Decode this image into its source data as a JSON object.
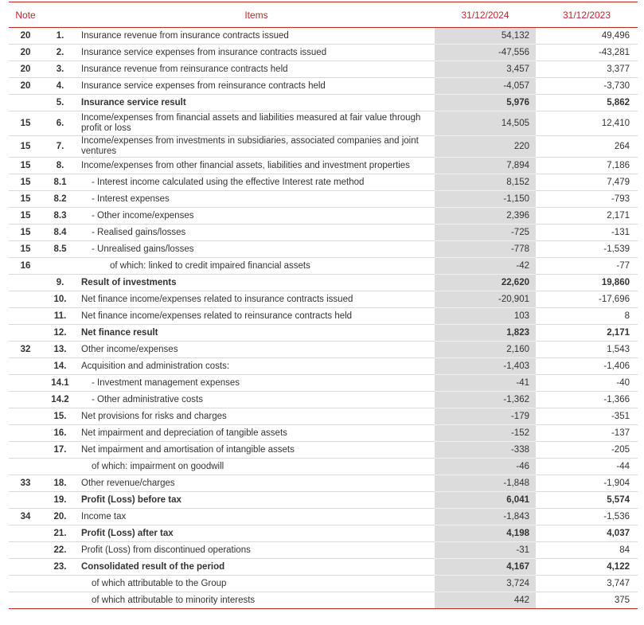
{
  "header": {
    "note": "Note",
    "items": "Items",
    "col1": "31/12/2024",
    "col2": "31/12/2023"
  },
  "rows": [
    {
      "note": "20",
      "num": "1.",
      "item": "Insurance revenue from insurance contracts issued",
      "v24": "54,132",
      "v23": "49,496",
      "bold": false,
      "indent": 0
    },
    {
      "note": "20",
      "num": "2.",
      "item": "Insurance service expenses from insurance contracts issued",
      "v24": "-47,556",
      "v23": "-43,281",
      "bold": false,
      "indent": 0
    },
    {
      "note": "20",
      "num": "3.",
      "item": "Insurance revenue from reinsurance contracts held",
      "v24": "3,457",
      "v23": "3,377",
      "bold": false,
      "indent": 0
    },
    {
      "note": "20",
      "num": "4.",
      "item": "Insurance service expenses from reinsurance contracts held",
      "v24": "-4,057",
      "v23": "-3,730",
      "bold": false,
      "indent": 0
    },
    {
      "note": "",
      "num": "5.",
      "item": "Insurance service result",
      "v24": "5,976",
      "v23": "5,862",
      "bold": true,
      "indent": 0
    },
    {
      "note": "15",
      "num": "6.",
      "item": "Income/expenses from financial assets and liabilities measured at fair value through profit or loss",
      "v24": "14,505",
      "v23": "12,410",
      "bold": false,
      "indent": 0,
      "tall": true
    },
    {
      "note": "15",
      "num": "7.",
      "item": "Income/expenses from investments in subsidiaries, associated companies and joint ventures",
      "v24": "220",
      "v23": "264",
      "bold": false,
      "indent": 0
    },
    {
      "note": "15",
      "num": "8.",
      "item": "Income/expenses from other financial assets, liabilities and investment properties",
      "v24": "7,894",
      "v23": "7,186",
      "bold": false,
      "indent": 0
    },
    {
      "note": "15",
      "num": "8.1",
      "item": "- Interest income calculated using the effective Interest rate method",
      "v24": "8,152",
      "v23": "7,479",
      "bold": false,
      "indent": 1
    },
    {
      "note": "15",
      "num": "8.2",
      "item": "- Interest expenses",
      "v24": "-1,150",
      "v23": "-793",
      "bold": false,
      "indent": 1
    },
    {
      "note": "15",
      "num": "8.3",
      "item": "- Other income/expenses",
      "v24": "2,396",
      "v23": "2,171",
      "bold": false,
      "indent": 1
    },
    {
      "note": "15",
      "num": "8.4",
      "item": "- Realised gains/losses",
      "v24": "-725",
      "v23": "-131",
      "bold": false,
      "indent": 1
    },
    {
      "note": "15",
      "num": "8.5",
      "item": "- Unrealised gains/losses",
      "v24": "-778",
      "v23": "-1,539",
      "bold": false,
      "indent": 1
    },
    {
      "note": "16",
      "num": "",
      "item": "of which: linked to credit impaired financial assets",
      "v24": "-42",
      "v23": "-77",
      "bold": false,
      "indent": 2
    },
    {
      "note": "",
      "num": "9.",
      "item": "Result of investments",
      "v24": "22,620",
      "v23": "19,860",
      "bold": true,
      "indent": 0
    },
    {
      "note": "",
      "num": "10.",
      "item": "Net finance income/expenses related to insurance contracts issued",
      "v24": "-20,901",
      "v23": "-17,696",
      "bold": false,
      "indent": 0
    },
    {
      "note": "",
      "num": "11.",
      "item": "Net finance income/expenses related to reinsurance contracts held",
      "v24": "103",
      "v23": "8",
      "bold": false,
      "indent": 0
    },
    {
      "note": "",
      "num": "12.",
      "item": "Net finance result",
      "v24": "1,823",
      "v23": "2,171",
      "bold": true,
      "indent": 0
    },
    {
      "note": "32",
      "num": "13.",
      "item": "Other income/expenses",
      "v24": "2,160",
      "v23": "1,543",
      "bold": false,
      "indent": 0
    },
    {
      "note": "",
      "num": "14.",
      "item": "Acquisition and administration costs:",
      "v24": "-1,403",
      "v23": "-1,406",
      "bold": false,
      "indent": 0
    },
    {
      "note": "",
      "num": "14.1",
      "item": "- Investment management expenses",
      "v24": "-41",
      "v23": "-40",
      "bold": false,
      "indent": 1
    },
    {
      "note": "",
      "num": "14.2",
      "item": "- Other administrative costs",
      "v24": "-1,362",
      "v23": "-1,366",
      "bold": false,
      "indent": 1
    },
    {
      "note": "",
      "num": "15.",
      "item": "Net provisions for risks and charges",
      "v24": "-179",
      "v23": "-351",
      "bold": false,
      "indent": 0
    },
    {
      "note": "",
      "num": "16.",
      "item": "Net impairment and depreciation of tangible assets",
      "v24": "-152",
      "v23": "-137",
      "bold": false,
      "indent": 0
    },
    {
      "note": "",
      "num": "17.",
      "item": "Net impairment and amortisation of intangible assets",
      "v24": "-338",
      "v23": "-205",
      "bold": false,
      "indent": 0
    },
    {
      "note": "",
      "num": "",
      "item": "of which: impairment on goodwill",
      "v24": "-46",
      "v23": "-44",
      "bold": false,
      "indent": 3
    },
    {
      "note": "33",
      "num": "18.",
      "item": "Other revenue/charges",
      "v24": "-1,848",
      "v23": "-1,904",
      "bold": false,
      "indent": 0
    },
    {
      "note": "",
      "num": "19.",
      "item": "Profit (Loss) before tax",
      "v24": "6,041",
      "v23": "5,574",
      "bold": true,
      "indent": 0
    },
    {
      "note": "34",
      "num": "20.",
      "item": "Income tax",
      "v24": "-1,843",
      "v23": "-1,536",
      "bold": false,
      "indent": 0
    },
    {
      "note": "",
      "num": "21.",
      "item": "Profit (Loss) after tax",
      "v24": "4,198",
      "v23": "4,037",
      "bold": true,
      "indent": 0
    },
    {
      "note": "",
      "num": "22.",
      "item": "Profit (Loss) from discontinued operations",
      "v24": "-31",
      "v23": "84",
      "bold": false,
      "indent": 0
    },
    {
      "note": "",
      "num": "23.",
      "item": "Consolidated result of the period",
      "v24": "4,167",
      "v23": "4,122",
      "bold": true,
      "indent": 0
    },
    {
      "note": "",
      "num": "",
      "item": "of which attributable to the Group",
      "v24": "3,724",
      "v23": "3,747",
      "bold": false,
      "indent": 3
    },
    {
      "note": "",
      "num": "",
      "item": "of which attributable to minority interests",
      "v24": "442",
      "v23": "375",
      "bold": false,
      "indent": 3
    }
  ]
}
